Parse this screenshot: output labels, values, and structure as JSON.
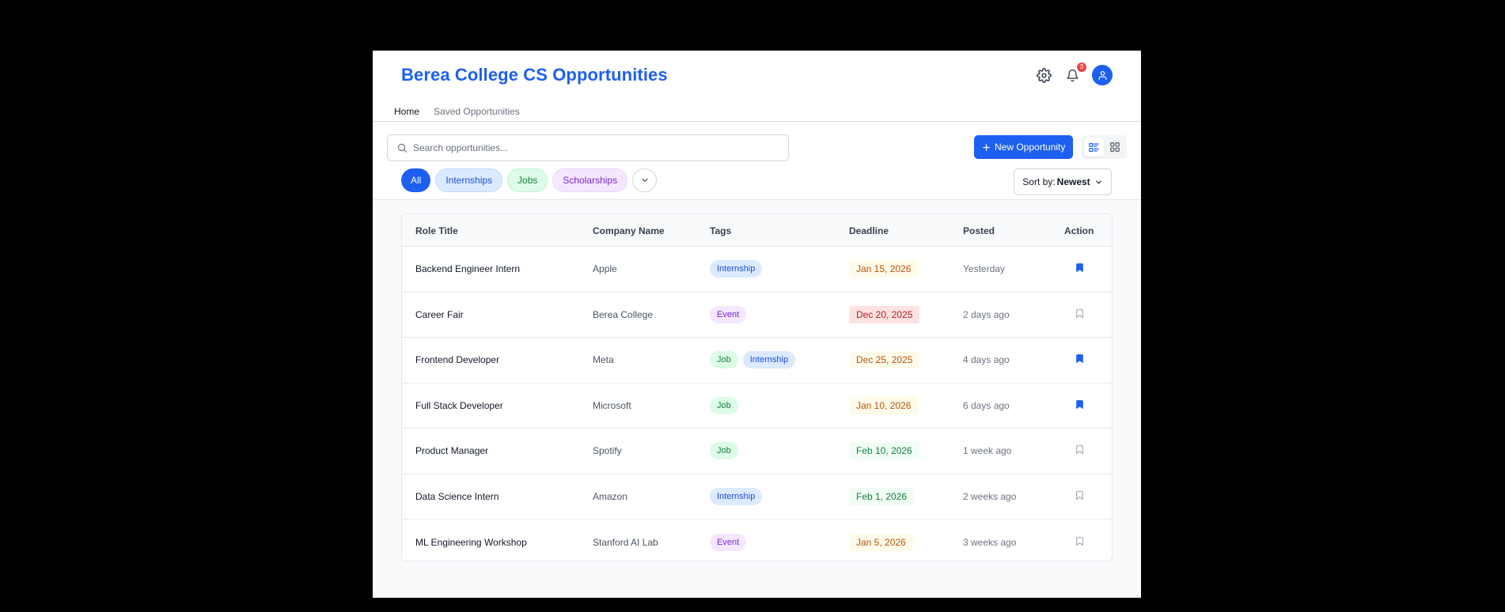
{
  "header": {
    "title": "Berea College CS Opportunities",
    "notifications_count": "3",
    "accent": "#1d5ff0"
  },
  "tabs": [
    {
      "label": "Home",
      "active": true
    },
    {
      "label": "Saved Opportunities",
      "active": false
    }
  ],
  "search": {
    "placeholder": "Search opportunities...",
    "value": ""
  },
  "toolbar": {
    "new_label": "New Opportunity",
    "view": "list"
  },
  "filters": [
    {
      "label": "All",
      "active": true
    },
    {
      "label": "Internships",
      "active": false
    },
    {
      "label": "Jobs",
      "active": false
    },
    {
      "label": "Scholarships",
      "active": false
    }
  ],
  "sort": {
    "prefix": "Sort by:",
    "value": "Newest"
  },
  "table": {
    "columns": [
      "Role Title",
      "Company Name",
      "Tags",
      "Deadline",
      "Posted",
      "Action"
    ],
    "rows": [
      {
        "role": "Backend Engineer Intern",
        "company": "Apple",
        "tags": [
          "Internship"
        ],
        "deadline": "Jan 15, 2026",
        "deadline_status": "amber",
        "posted": "Yesterday",
        "saved": true
      },
      {
        "role": "Career Fair",
        "company": "Berea College",
        "tags": [
          "Event"
        ],
        "deadline": "Dec 20, 2025",
        "deadline_status": "red",
        "posted": "2 days ago",
        "saved": false
      },
      {
        "role": "Frontend Developer",
        "company": "Meta",
        "tags": [
          "Job",
          "Internship"
        ],
        "deadline": "Dec 25, 2025",
        "deadline_status": "amber",
        "posted": "4 days ago",
        "saved": true
      },
      {
        "role": "Full Stack Developer",
        "company": "Microsoft",
        "tags": [
          "Job"
        ],
        "deadline": "Jan 10, 2026",
        "deadline_status": "amber",
        "posted": "6 days ago",
        "saved": true
      },
      {
        "role": "Product Manager",
        "company": "Spotify",
        "tags": [
          "Job"
        ],
        "deadline": "Feb 10, 2026",
        "deadline_status": "green",
        "posted": "1 week ago",
        "saved": false
      },
      {
        "role": "Data Science Intern",
        "company": "Amazon",
        "tags": [
          "Internship"
        ],
        "deadline": "Feb 1, 2026",
        "deadline_status": "green",
        "posted": "2 weeks ago",
        "saved": false
      },
      {
        "role": "ML Engineering Workshop",
        "company": "Stanford AI Lab",
        "tags": [
          "Event"
        ],
        "deadline": "Jan 5, 2026",
        "deadline_status": "amber",
        "posted": "3 weeks ago",
        "saved": false
      }
    ]
  }
}
